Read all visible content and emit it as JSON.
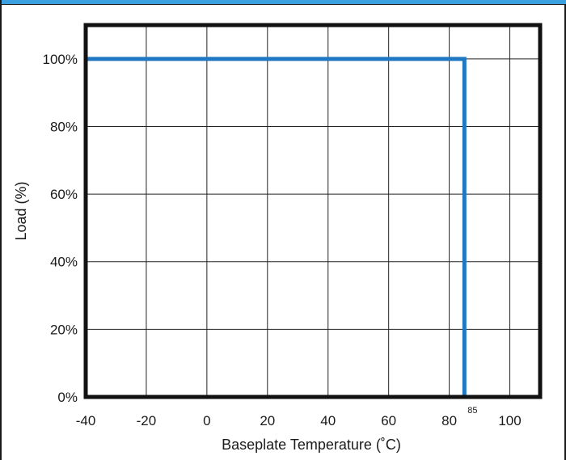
{
  "colors": {
    "header_bar": "#3aa0e0",
    "curve": "#1f78c1",
    "frame": "#111111",
    "grid": "#222222"
  },
  "chart_data": {
    "type": "line",
    "title": "",
    "xlabel": "Baseplate Temperature (˚C)",
    "ylabel": "Load (%)",
    "xlim": [
      -40,
      110
    ],
    "ylim": [
      0,
      110
    ],
    "x_ticks": [
      -40,
      -20,
      0,
      20,
      40,
      60,
      80,
      100
    ],
    "x_tick_labels": [
      "-40",
      "-20",
      "0",
      "20",
      "40",
      "60",
      "80",
      "100"
    ],
    "y_ticks": [
      0,
      20,
      40,
      60,
      80,
      100
    ],
    "y_tick_labels": [
      "0%",
      "20%",
      "40%",
      "60%",
      "80%",
      "100%"
    ],
    "grid": true,
    "series": [
      {
        "x": [
          -40,
          85,
          85
        ],
        "y": [
          100,
          100,
          0
        ]
      }
    ],
    "annotations": [
      {
        "text": "85",
        "x": 85
      }
    ]
  }
}
